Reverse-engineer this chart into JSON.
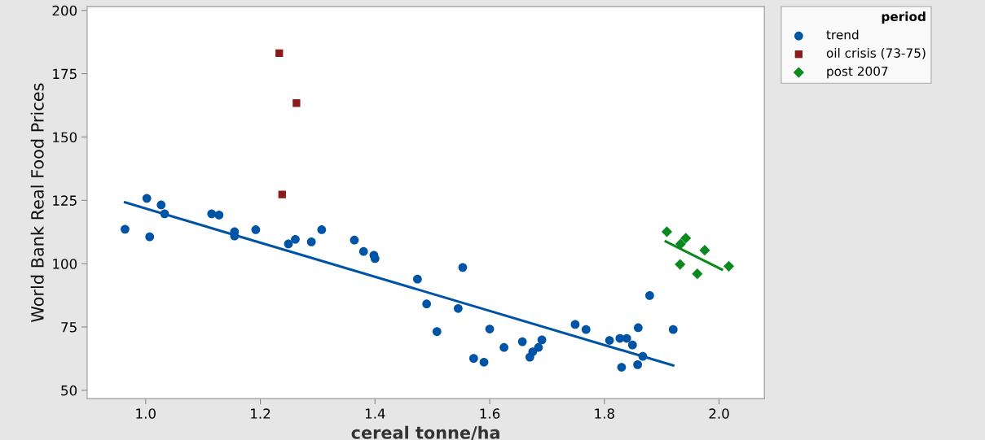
{
  "chart_data": {
    "type": "scatter",
    "xlabel": "cereal tonne/ha",
    "ylabel": "World Bank Real Food Prices",
    "legend_title": "period",
    "xlim": [
      0.898,
      2.079
    ],
    "ylim": [
      46.7,
      201.5
    ],
    "xticks": [
      {
        "value": 1.0,
        "label": "1.0"
      },
      {
        "value": 1.2,
        "label": "1.2"
      },
      {
        "value": 1.4,
        "label": "1.4"
      },
      {
        "value": 1.6,
        "label": "1.6"
      },
      {
        "value": 1.8,
        "label": "1.8"
      },
      {
        "value": 2.0,
        "label": "2.0"
      }
    ],
    "yticks": [
      50,
      75,
      100,
      125,
      150,
      175,
      200
    ],
    "grid": false,
    "legend": "top right",
    "series": [
      {
        "name": "trend",
        "color": "#0054a6",
        "marker": "circle",
        "x": [
          0.964,
          1.002,
          1.007,
          1.027,
          1.033,
          1.115,
          1.128,
          1.155,
          1.155,
          1.192,
          1.249,
          1.261,
          1.289,
          1.307,
          1.364,
          1.38,
          1.398,
          1.4,
          1.474,
          1.49,
          1.508,
          1.545,
          1.553,
          1.572,
          1.59,
          1.6,
          1.625,
          1.657,
          1.67,
          1.675,
          1.685,
          1.691,
          1.749,
          1.768,
          1.809,
          1.827,
          1.839,
          1.849,
          1.859,
          1.83,
          1.858,
          1.867,
          1.879,
          1.92
        ],
        "values": [
          113.6,
          125.8,
          110.6,
          123.2,
          119.7,
          119.7,
          119.2,
          112.6,
          110.9,
          113.4,
          107.8,
          109.6,
          108.6,
          113.4,
          109.3,
          104.8,
          103.3,
          102.0,
          93.9,
          84.1,
          73.2,
          82.3,
          98.5,
          62.6,
          61.1,
          74.2,
          66.9,
          69.2,
          63.1,
          65.2,
          66.9,
          69.9,
          76.0,
          74.0,
          69.7,
          70.5,
          70.5,
          67.9,
          74.7,
          59.1,
          60.1,
          63.4,
          87.4,
          74.0
        ]
      },
      {
        "name": "oil crisis (73-75)",
        "color": "#8b1a1a",
        "marker": "square",
        "x": [
          1.233,
          1.263,
          1.238
        ],
        "values": [
          183.1,
          163.4,
          127.3
        ]
      },
      {
        "name": "post 2007",
        "color": "#0a8a1e",
        "marker": "diamond",
        "x": [
          1.909,
          1.933,
          1.942,
          1.932,
          1.975,
          1.962,
          2.017
        ],
        "values": [
          112.6,
          107.8,
          110.1,
          99.7,
          105.3,
          96.0,
          99.0
        ]
      },
      {
        "type": "line",
        "color": "#0054a6",
        "x": [
          0.964,
          1.92
        ],
        "values": [
          124.2,
          59.8
        ]
      },
      {
        "type": "line",
        "color": "#0a8a1e",
        "x": [
          1.907,
          2.005
        ],
        "values": [
          108.8,
          97.7
        ]
      }
    ]
  }
}
